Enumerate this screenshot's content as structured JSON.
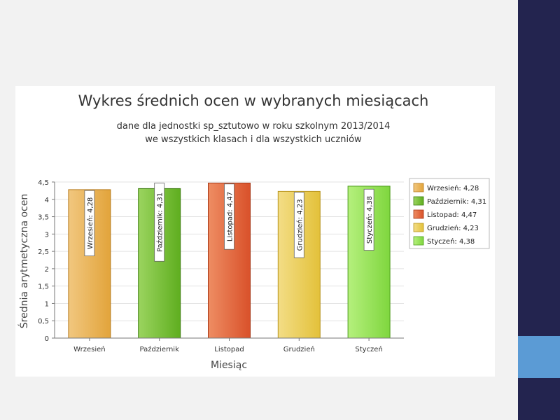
{
  "theme": {
    "slide_bg": "#f2f2f2",
    "side_bar": "#23244f",
    "side_accent": "#5b9bd5"
  },
  "chart_data": {
    "type": "bar",
    "title": "Wykres średnich ocen w wybranych miesiącach",
    "subtitle_lines": [
      "dane dla jednostki sp_sztutowo w roku szkolnym 2013/2014",
      "we wszystkich klasach i dla wszystkich uczniów"
    ],
    "xlabel": "Miesiąc",
    "ylabel": "Średnia arytmetyczna ocen",
    "ylim": [
      0,
      4.5
    ],
    "yticks": [
      "0",
      "0,5",
      "1",
      "1,5",
      "2",
      "2,5",
      "3",
      "3,5",
      "4",
      "4,5"
    ],
    "grid": true,
    "legend_position": "right",
    "categories": [
      "Wrzesień",
      "Październik",
      "Listopad",
      "Grudzień",
      "Styczeń"
    ],
    "values": [
      4.28,
      4.31,
      4.47,
      4.23,
      4.38
    ],
    "bar_labels": [
      "Wrzesień: 4,28",
      "Październik: 4,31",
      "Listopad: 4,47",
      "Grudzień: 4,23",
      "Styczeń: 4,38"
    ],
    "legend": [
      "Wrzesień: 4,28",
      "Październik: 4,31",
      "Listopad: 4,47",
      "Grudzień: 4,23",
      "Styczeń: 4,38"
    ],
    "colors": [
      "#e2a43b",
      "#5fae1f",
      "#d9512a",
      "#e3c13a",
      "#7fd63e"
    ],
    "light_colors": [
      "#f1c77f",
      "#9bd45f",
      "#ee8d63",
      "#f3dd86",
      "#b5f07d"
    ],
    "border_colors": [
      "#b67a1d",
      "#3d7e0f",
      "#a63716",
      "#b8951d",
      "#4f9d1f"
    ]
  }
}
